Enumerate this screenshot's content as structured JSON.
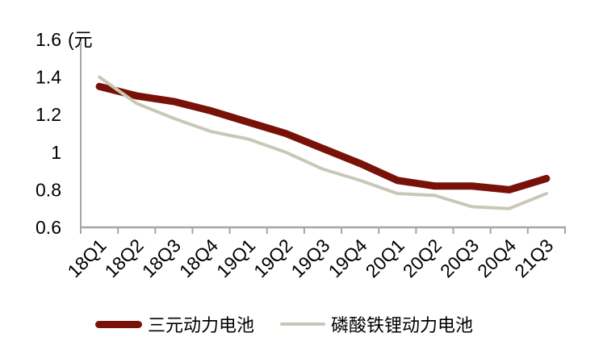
{
  "chart_data": {
    "type": "line",
    "title": "",
    "unit_label": "(元",
    "categories": [
      "18Q1",
      "18Q2",
      "18Q3",
      "18Q4",
      "19Q1",
      "19Q2",
      "19Q3",
      "19Q4",
      "20Q1",
      "20Q2",
      "20Q3",
      "20Q4",
      "21Q3"
    ],
    "series": [
      {
        "name": "三元动力电池",
        "color": "#781209",
        "stroke_width": 9,
        "values": [
          1.35,
          1.3,
          1.27,
          1.22,
          1.16,
          1.1,
          1.02,
          0.94,
          0.85,
          0.82,
          0.82,
          0.8,
          0.86
        ]
      },
      {
        "name": "磷酸铁锂动力电池",
        "color": "#CAC7B7",
        "stroke_width": 4,
        "values": [
          1.4,
          1.26,
          1.18,
          1.11,
          1.07,
          1.0,
          0.91,
          0.85,
          0.78,
          0.77,
          0.71,
          0.7,
          0.78
        ]
      }
    ],
    "ylim": [
      0.6,
      1.6
    ],
    "yticks": [
      1.6,
      1.4,
      1.2,
      1,
      0.8,
      0.6
    ],
    "ytick_labels": [
      "1.6",
      "1.4",
      "1.2",
      "1",
      "0.8",
      "0.6"
    ],
    "xlabel": "",
    "ylabel": "(元",
    "grid": "off",
    "legend_position": "bottom",
    "axis_color": "#a6a6a6"
  }
}
